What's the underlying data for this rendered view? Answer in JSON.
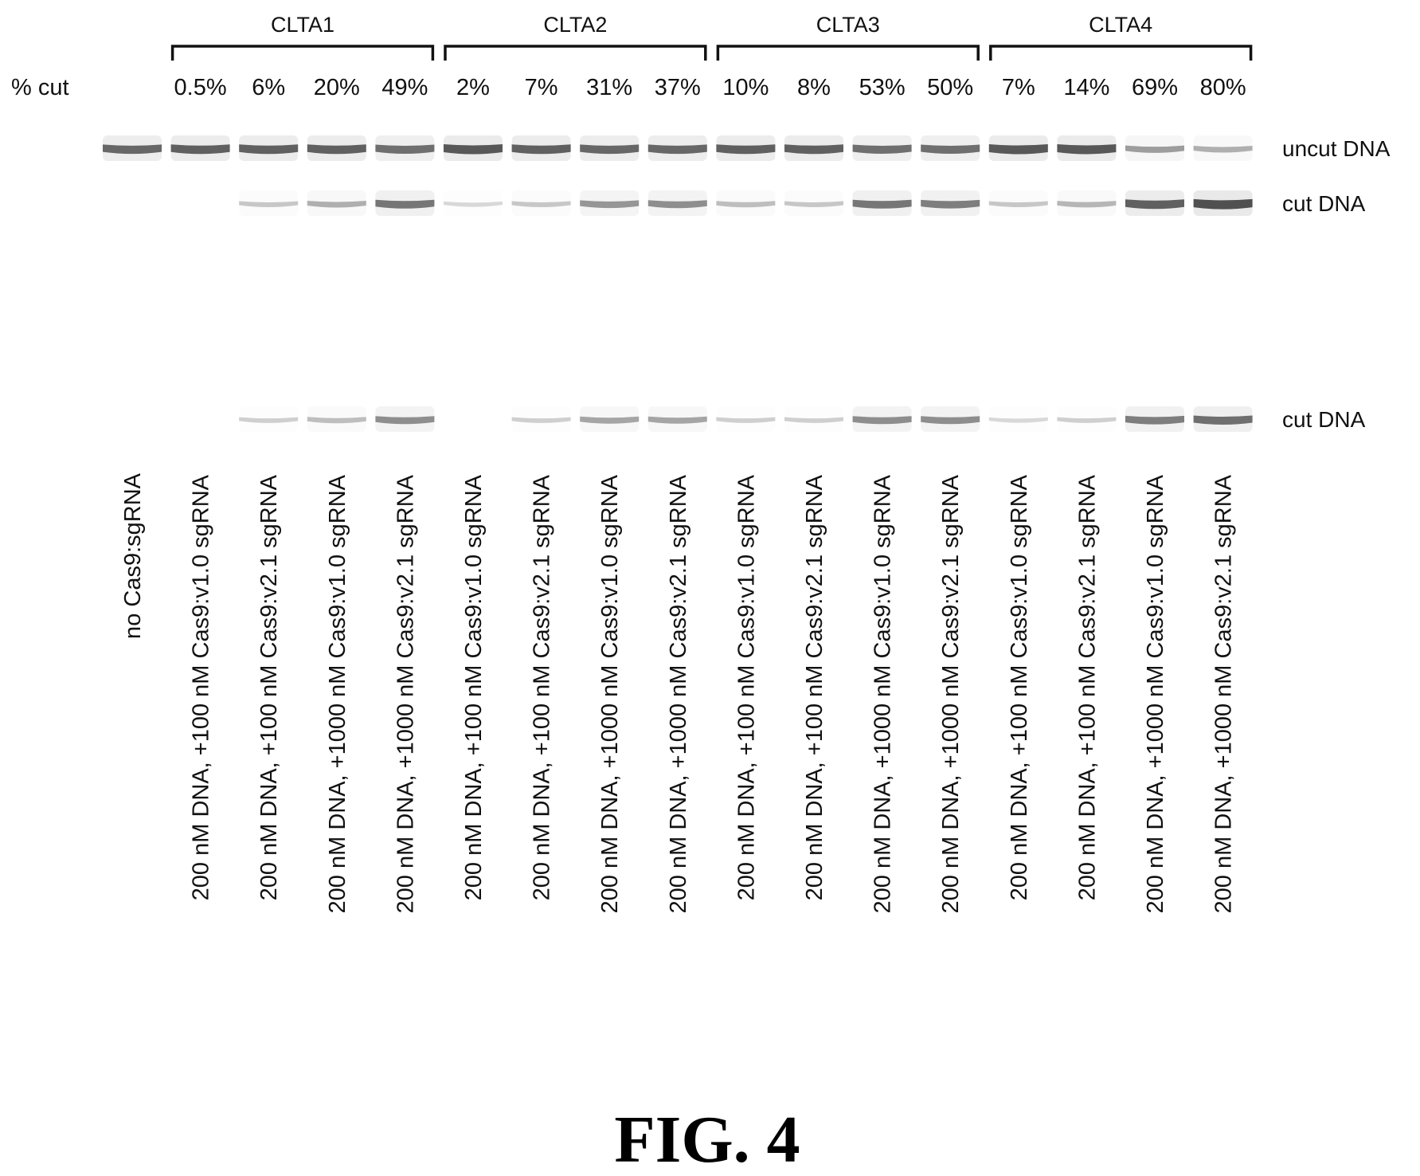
{
  "cut_row_label": "% cut",
  "groups": [
    {
      "name": "CLTA1",
      "lanes": [
        1,
        2,
        3,
        4
      ]
    },
    {
      "name": "CLTA2",
      "lanes": [
        5,
        6,
        7,
        8
      ]
    },
    {
      "name": "CLTA3",
      "lanes": [
        9,
        10,
        11,
        12
      ]
    },
    {
      "name": "CLTA4",
      "lanes": [
        13,
        14,
        15,
        16
      ]
    }
  ],
  "lanes": [
    {
      "label": "no Cas9:sgRNA",
      "cut_pct": "",
      "uncut": 0.75,
      "cut": 0.0,
      "cut2": 0.0
    },
    {
      "label": "200 nM DNA, +100 nM Cas9:v1.0 sgRNA",
      "cut_pct": "0.5%",
      "uncut": 0.8,
      "cut": 0.0,
      "cut2": 0.0
    },
    {
      "label": "200 nM DNA, +100 nM Cas9:v2.1 sgRNA",
      "cut_pct": "6%",
      "uncut": 0.8,
      "cut": 0.15,
      "cut2": 0.1
    },
    {
      "label": "200 nM DNA, +1000 nM Cas9:v1.0 sgRNA",
      "cut_pct": "20%",
      "uncut": 0.8,
      "cut": 0.3,
      "cut2": 0.2
    },
    {
      "label": "200 nM DNA, +1000 nM Cas9:v2.1 sgRNA",
      "cut_pct": "49%",
      "uncut": 0.7,
      "cut": 0.65,
      "cut2": 0.5
    },
    {
      "label": "200 nM DNA, +100 nM Cas9:v1.0 sgRNA",
      "cut_pct": "2%",
      "uncut": 0.85,
      "cut": 0.05,
      "cut2": 0.0
    },
    {
      "label": "200 nM DNA, +100 nM Cas9:v2.1 sgRNA",
      "cut_pct": "7%",
      "uncut": 0.8,
      "cut": 0.15,
      "cut2": 0.1
    },
    {
      "label": "200 nM DNA, +1000 nM Cas9:v1.0 sgRNA",
      "cut_pct": "31%",
      "uncut": 0.75,
      "cut": 0.45,
      "cut2": 0.35
    },
    {
      "label": "200 nM DNA, +1000 nM Cas9:v2.1 sgRNA",
      "cut_pct": "37%",
      "uncut": 0.75,
      "cut": 0.5,
      "cut2": 0.35
    },
    {
      "label": "200 nM DNA, +100 nM Cas9:v1.0 sgRNA",
      "cut_pct": "10%",
      "uncut": 0.8,
      "cut": 0.2,
      "cut2": 0.1
    },
    {
      "label": "200 nM DNA, +100 nM Cas9:v2.1 sgRNA",
      "cut_pct": "8%",
      "uncut": 0.8,
      "cut": 0.15,
      "cut2": 0.1
    },
    {
      "label": "200 nM DNA, +1000 nM Cas9:v1.0 sgRNA",
      "cut_pct": "53%",
      "uncut": 0.7,
      "cut": 0.65,
      "cut2": 0.5
    },
    {
      "label": "200 nM DNA, +1000 nM Cas9:v2.1 sgRNA",
      "cut_pct": "50%",
      "uncut": 0.7,
      "cut": 0.6,
      "cut2": 0.5
    },
    {
      "label": "200 nM DNA, +100 nM Cas9:v1.0 sgRNA",
      "cut_pct": "7%",
      "uncut": 0.85,
      "cut": 0.15,
      "cut2": 0.05
    },
    {
      "label": "200 nM DNA, +100 nM Cas9:v2.1 sgRNA",
      "cut_pct": "14%",
      "uncut": 0.85,
      "cut": 0.25,
      "cut2": 0.1
    },
    {
      "label": "200 nM DNA, +1000 nM Cas9:v1.0 sgRNA",
      "cut_pct": "69%",
      "uncut": 0.4,
      "cut": 0.8,
      "cut2": 0.6
    },
    {
      "label": "200 nM DNA, +1000 nM Cas9:v2.1 sgRNA",
      "cut_pct": "80%",
      "uncut": 0.3,
      "cut": 0.9,
      "cut2": 0.7
    }
  ],
  "band_labels": [
    "uncut DNA",
    "cut DNA",
    "cut DNA"
  ],
  "caption": "FIG. 4",
  "colors": {
    "band": "#3a3a3a",
    "text": "#111111"
  }
}
